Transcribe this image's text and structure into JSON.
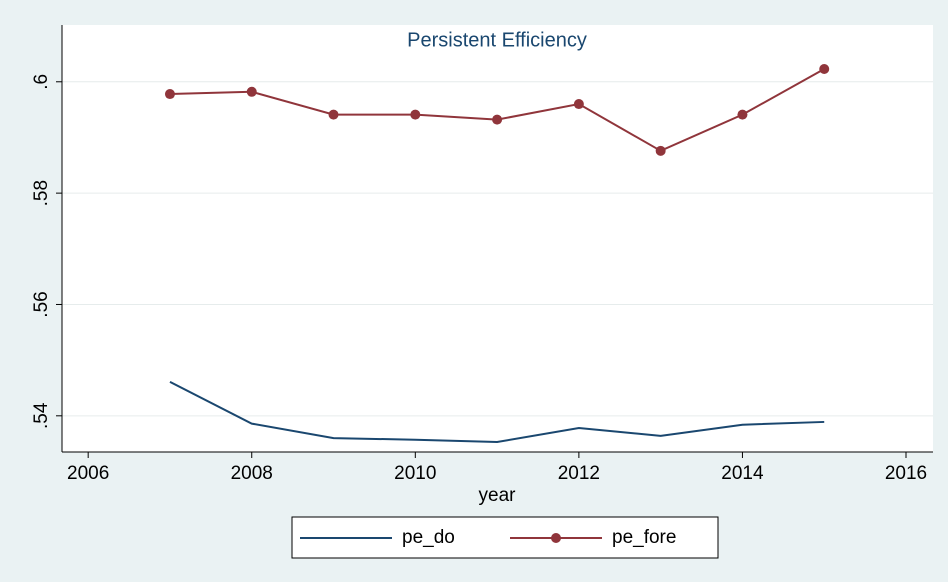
{
  "chart_data": {
    "type": "line",
    "title": "Persistent Efficiency",
    "x_label": "year",
    "x": [
      2007,
      2008,
      2009,
      2010,
      2011,
      2012,
      2013,
      2014,
      2015
    ],
    "series": [
      {
        "name": "pe_do",
        "color": "#1a476f",
        "markers": false,
        "values": [
          0.5461,
          0.5386,
          0.536,
          0.5357,
          0.5353,
          0.5378,
          0.5364,
          0.5384,
          0.5389
        ]
      },
      {
        "name": "pe_fore",
        "color": "#90353b",
        "markers": true,
        "values": [
          0.5978,
          0.5982,
          0.5941,
          0.5941,
          0.5932,
          0.596,
          0.5876,
          0.5941,
          0.6023
        ]
      }
    ],
    "xlim": [
      2005.68,
      2016.33
    ],
    "xticks": [
      2006,
      2008,
      2010,
      2012,
      2014,
      2016
    ],
    "ylim": [
      0.5335,
      0.6102
    ],
    "yticks": [
      {
        "value": 0.54,
        "label": ".54"
      },
      {
        "value": 0.56,
        "label": ".56"
      },
      {
        "value": 0.58,
        "label": ".58"
      },
      {
        "value": 0.6,
        "label": ".6"
      }
    ],
    "grid": true,
    "legend": "bottom"
  }
}
